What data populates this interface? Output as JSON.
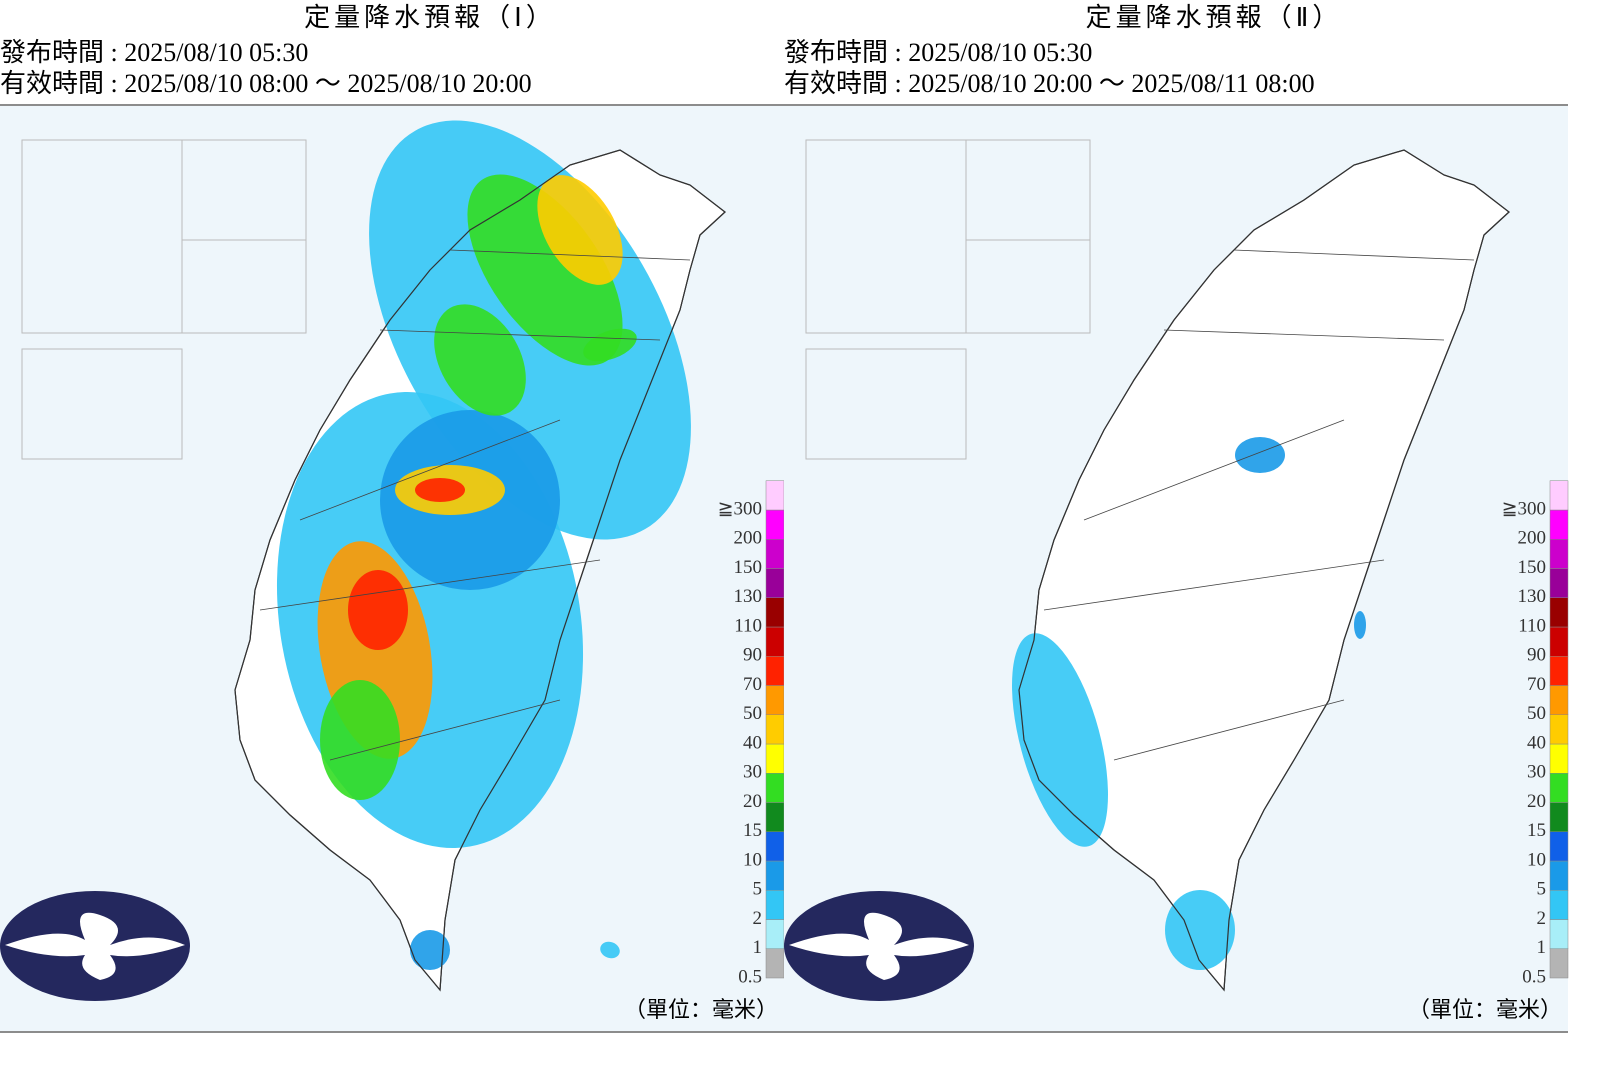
{
  "panels": [
    {
      "title": "定量降水預報（Ⅰ）",
      "issued": "發布時間 : 2025/08/10 05:30",
      "valid": "有效時間 : 2025/08/10 08:00 ～ 2025/08/10 20:00",
      "unit": "（單位：毫米）"
    },
    {
      "title": "定量降水預報（Ⅱ）",
      "issued": "發布時間 : 2025/08/10 05:30",
      "valid": "有效時間 : 2025/08/10 20:00 ～ 2025/08/11 08:00",
      "unit": "（單位：毫米）"
    }
  ],
  "legend": {
    "labels": [
      "0.5",
      "1",
      "2",
      "5",
      "10",
      "15",
      "20",
      "30",
      "40",
      "50",
      "70",
      "90",
      "110",
      "130",
      "150",
      "200",
      "≧300"
    ],
    "colors": [
      "#b4b4b4",
      "#a8eef8",
      "#33c6f5",
      "#1a9ae8",
      "#1060e8",
      "#118a1e",
      "#33dd22",
      "#ffff00",
      "#ffcc00",
      "#ff9900",
      "#ff2200",
      "#cc0000",
      "#990000",
      "#990099",
      "#cc00cc",
      "#ff00ff",
      "#ffccff"
    ]
  }
}
